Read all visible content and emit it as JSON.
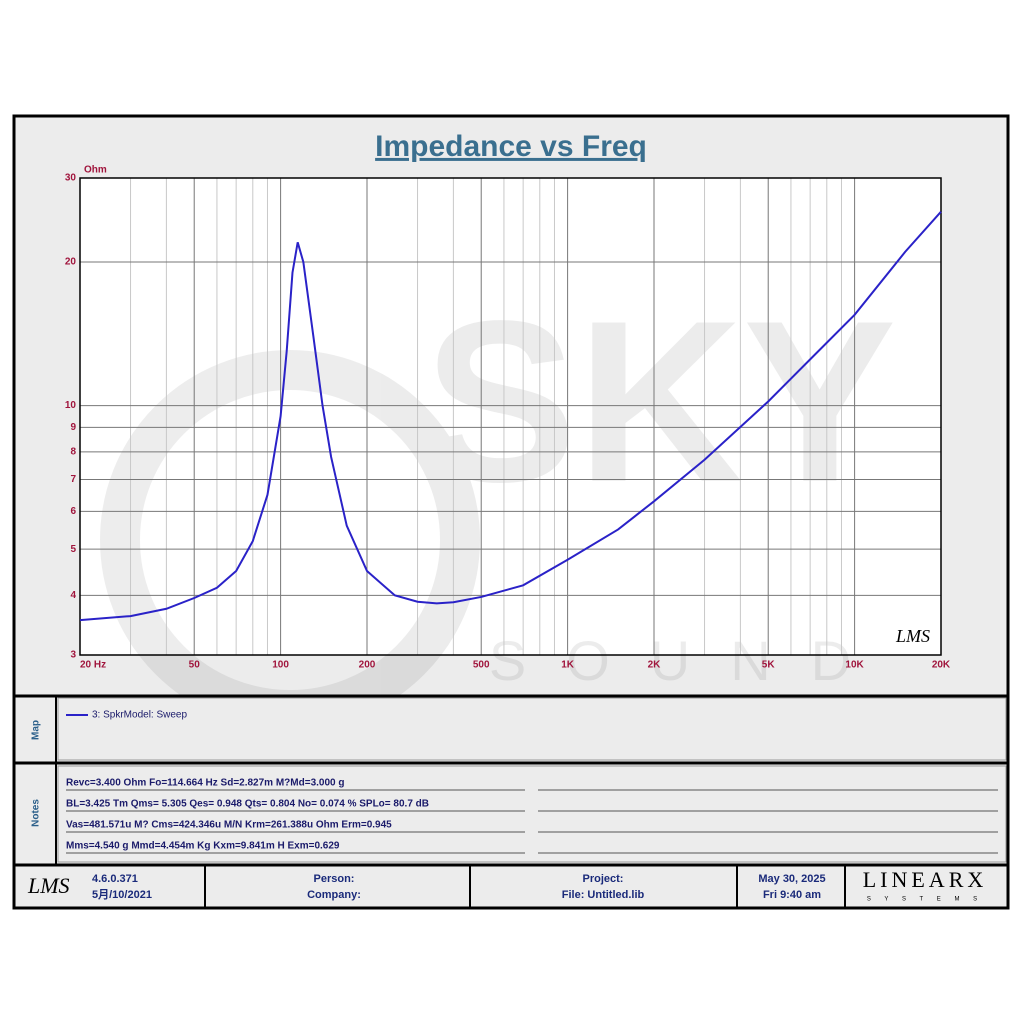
{
  "chart_data": {
    "type": "line",
    "title": "Impedance vs Freq",
    "ylabel": "Ohm",
    "x": [
      20,
      30,
      40,
      50,
      60,
      70,
      80,
      90,
      100,
      105,
      110,
      114.7,
      120,
      130,
      140,
      150,
      170,
      200,
      250,
      300,
      350,
      400,
      500,
      700,
      1000,
      1500,
      2000,
      3000,
      5000,
      7000,
      10000,
      15000,
      20000
    ],
    "series": [
      {
        "name": "3: SpkrModel: Sweep",
        "color": "#2a22c8",
        "values": [
          3.55,
          3.62,
          3.75,
          3.95,
          4.15,
          4.5,
          5.2,
          6.5,
          9.5,
          13,
          19,
          22,
          20,
          14,
          10,
          7.8,
          5.6,
          4.5,
          4.0,
          3.88,
          3.85,
          3.87,
          3.97,
          4.2,
          4.75,
          5.5,
          6.3,
          7.7,
          10.2,
          12.5,
          15.5,
          21,
          25.5
        ]
      }
    ],
    "xlog": true,
    "ylog": true,
    "minor_grid": true,
    "xlim": [
      20,
      20000
    ],
    "ylim": [
      3,
      30
    ],
    "xticks": [
      {
        "value": 20,
        "label": "20  Hz"
      },
      50,
      100,
      200,
      500,
      {
        "value": 1000,
        "label": "1K"
      },
      {
        "value": 2000,
        "label": "2K"
      },
      {
        "value": 5000,
        "label": "5K"
      },
      {
        "value": 10000,
        "label": "10K"
      },
      {
        "value": 20000,
        "label": "20K"
      }
    ],
    "yticks": [
      3,
      4,
      5,
      6,
      7,
      8,
      9,
      10,
      20,
      30
    ],
    "logo": "LMS"
  },
  "watermark": {
    "brand": "SKY",
    "sub": "SOUND"
  },
  "map": {
    "title": "Map"
  },
  "notes": {
    "title": "Notes",
    "lines": [
      "Revc=3.400 Ohm  Fo=114.664 Hz  Sd=2.827m M?Md=3.000 g",
      "BL=3.425 Tm  Qms= 5.305  Qes= 0.948  Qts= 0.804  No= 0.074 %  SPLo= 80.7 dB",
      "Vas=481.571u M? Cms=424.346u M/N  Krm=261.388u Ohm  Erm=0.945",
      "Mms=4.540 g  Mmd=4.454m Kg  Kxm=9.841m H  Exm=0.629"
    ]
  },
  "footer": {
    "logo": "LMS",
    "version": "4.6.0.371",
    "date_built": "5月/10/2021",
    "person": "Person:",
    "company": "Company:",
    "project": "Project:",
    "file": "File: Untitled.lib",
    "date": "May 30, 2025",
    "time": "Fri  9:40 am",
    "brand": "LINEARX",
    "brand_sub": "S Y S T E M S"
  }
}
